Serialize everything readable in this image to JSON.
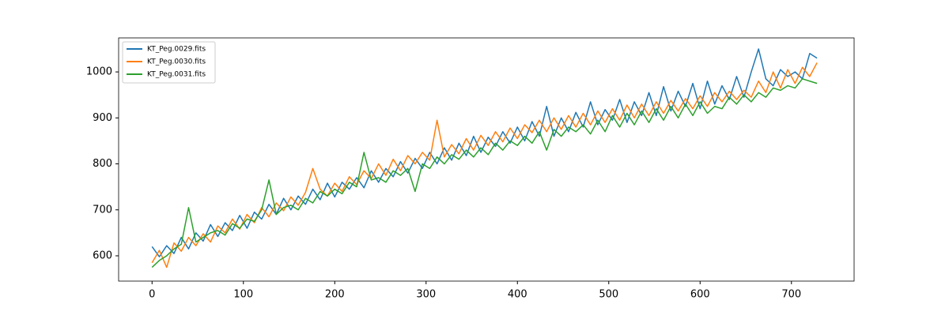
{
  "chart_data": {
    "type": "line",
    "x": [
      0,
      8,
      16,
      24,
      32,
      40,
      48,
      56,
      64,
      72,
      80,
      88,
      96,
      104,
      112,
      120,
      128,
      136,
      144,
      152,
      160,
      168,
      176,
      184,
      192,
      200,
      208,
      216,
      224,
      232,
      240,
      248,
      256,
      264,
      272,
      280,
      288,
      296,
      304,
      312,
      320,
      328,
      336,
      344,
      352,
      360,
      368,
      376,
      384,
      392,
      400,
      408,
      416,
      424,
      432,
      440,
      448,
      456,
      464,
      472,
      480,
      488,
      496,
      504,
      512,
      520,
      528,
      536,
      544,
      552,
      560,
      568,
      576,
      584,
      592,
      600,
      608,
      616,
      624,
      632,
      640,
      648,
      656,
      664,
      672,
      680,
      688,
      696,
      704,
      712,
      720,
      728
    ],
    "series": [
      {
        "name": "KT_Peg.0029.fits",
        "color": "#1f77b4",
        "values": [
          620,
          598,
          622,
          605,
          640,
          615,
          650,
          632,
          668,
          642,
          672,
          655,
          688,
          660,
          695,
          680,
          712,
          690,
          725,
          700,
          730,
          712,
          745,
          722,
          758,
          728,
          760,
          745,
          770,
          748,
          785,
          760,
          790,
          772,
          805,
          780,
          812,
          790,
          825,
          800,
          835,
          808,
          845,
          818,
          860,
          825,
          858,
          838,
          870,
          845,
          880,
          850,
          892,
          860,
          925,
          860,
          900,
          870,
          912,
          880,
          935,
          885,
          918,
          895,
          940,
          890,
          935,
          905,
          955,
          905,
          968,
          915,
          958,
          925,
          975,
          920,
          980,
          930,
          970,
          940,
          990,
          945,
          1000,
          1050,
          985,
          970,
          1005,
          990,
          1000,
          985,
          1040,
          1030
        ]
      },
      {
        "name": "KT_Peg.0030.fits",
        "color": "#ff7f0e",
        "values": [
          585,
          612,
          575,
          628,
          610,
          640,
          622,
          648,
          630,
          665,
          650,
          680,
          658,
          690,
          672,
          705,
          685,
          715,
          698,
          728,
          710,
          738,
          790,
          745,
          730,
          758,
          740,
          772,
          755,
          785,
          768,
          800,
          775,
          810,
          785,
          818,
          800,
          825,
          808,
          895,
          815,
          842,
          822,
          855,
          830,
          862,
          840,
          870,
          848,
          878,
          855,
          885,
          868,
          895,
          870,
          900,
          875,
          905,
          880,
          910,
          885,
          915,
          890,
          920,
          895,
          928,
          900,
          930,
          905,
          935,
          910,
          938,
          915,
          942,
          920,
          948,
          925,
          955,
          935,
          958,
          940,
          960,
          945,
          980,
          955,
          1000,
          965,
          1005,
          975,
          1010,
          990,
          1020
        ]
      },
      {
        "name": "KT_Peg.0031.fits",
        "color": "#2ca02c",
        "values": [
          575,
          590,
          600,
          615,
          625,
          705,
          630,
          640,
          650,
          655,
          645,
          670,
          660,
          680,
          675,
          700,
          765,
          690,
          705,
          710,
          700,
          725,
          715,
          740,
          730,
          745,
          735,
          760,
          750,
          825,
          765,
          770,
          760,
          785,
          775,
          790,
          740,
          800,
          790,
          815,
          800,
          820,
          810,
          830,
          815,
          835,
          820,
          845,
          830,
          850,
          840,
          860,
          845,
          870,
          830,
          875,
          860,
          880,
          870,
          885,
          865,
          895,
          870,
          905,
          880,
          910,
          885,
          915,
          890,
          920,
          895,
          925,
          900,
          930,
          905,
          935,
          910,
          925,
          920,
          945,
          930,
          950,
          935,
          955,
          945,
          965,
          960,
          970,
          965,
          985,
          980,
          975
        ]
      }
    ],
    "xlim": [
      -36.6,
      768.6
    ],
    "ylim": [
      545,
      1074
    ],
    "xticks": [
      0,
      100,
      200,
      300,
      400,
      500,
      600,
      700
    ],
    "yticks": [
      600,
      700,
      800,
      900,
      1000
    ],
    "legend": "upper left"
  }
}
